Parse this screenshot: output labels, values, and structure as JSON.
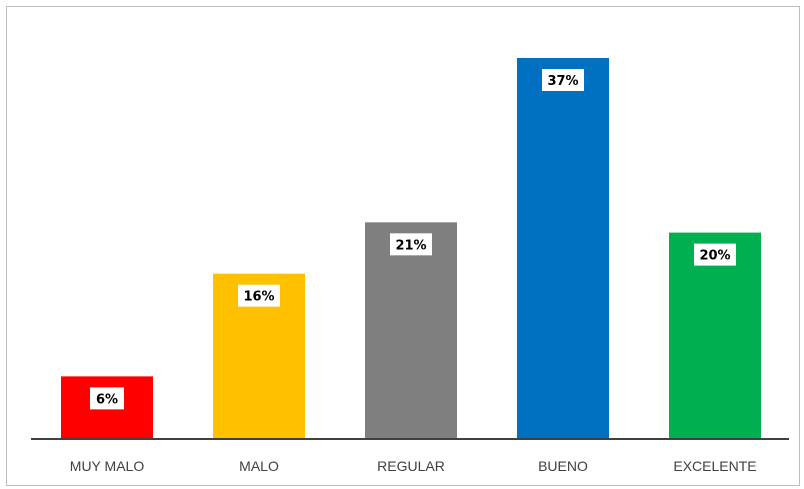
{
  "chart_data": {
    "type": "bar",
    "categories": [
      "MUY MALO",
      "MALO",
      "REGULAR",
      "BUENO",
      "EXCELENTE"
    ],
    "values": [
      6,
      16,
      21,
      37,
      20
    ],
    "data_labels": [
      "6%",
      "16%",
      "21%",
      "37%",
      "20%"
    ],
    "colors": [
      "#ff0000",
      "#ffc000",
      "#7f7f7f",
      "#0070c0",
      "#00b050"
    ],
    "ylim": [
      0,
      40
    ],
    "grid": false,
    "legend": "none"
  }
}
